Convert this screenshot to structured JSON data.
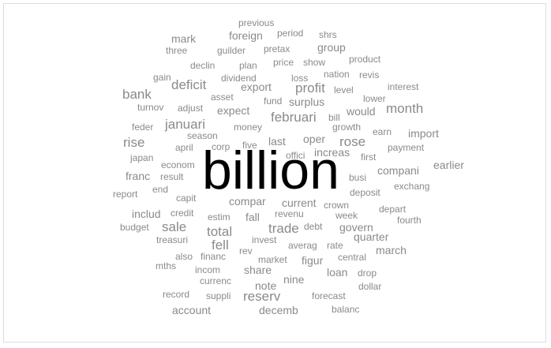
{
  "word_cloud": {
    "text_color": "#8a8a8a",
    "highlight_color": "#000000",
    "words": [
      {
        "text": "billion",
        "weight": 10
      },
      {
        "text": "previous",
        "weight": 2
      },
      {
        "text": "foreign",
        "weight": 3
      },
      {
        "text": "period",
        "weight": 2
      },
      {
        "text": "shrs",
        "weight": 2
      },
      {
        "text": "mark",
        "weight": 3
      },
      {
        "text": "three",
        "weight": 2
      },
      {
        "text": "guilder",
        "weight": 2
      },
      {
        "text": "pretax",
        "weight": 2
      },
      {
        "text": "group",
        "weight": 3
      },
      {
        "text": "declin",
        "weight": 2
      },
      {
        "text": "plan",
        "weight": 2
      },
      {
        "text": "price",
        "weight": 2
      },
      {
        "text": "show",
        "weight": 2
      },
      {
        "text": "product",
        "weight": 2
      },
      {
        "text": "gain",
        "weight": 2
      },
      {
        "text": "dividend",
        "weight": 2
      },
      {
        "text": "loss",
        "weight": 2
      },
      {
        "text": "nation",
        "weight": 2
      },
      {
        "text": "revis",
        "weight": 2
      },
      {
        "text": "deficit",
        "weight": 4
      },
      {
        "text": "export",
        "weight": 3
      },
      {
        "text": "profit",
        "weight": 4
      },
      {
        "text": "level",
        "weight": 2
      },
      {
        "text": "interest",
        "weight": 2
      },
      {
        "text": "bank",
        "weight": 4
      },
      {
        "text": "asset",
        "weight": 2
      },
      {
        "text": "fund",
        "weight": 2
      },
      {
        "text": "surplus",
        "weight": 3
      },
      {
        "text": "lower",
        "weight": 2
      },
      {
        "text": "turnov",
        "weight": 2
      },
      {
        "text": "adjust",
        "weight": 2
      },
      {
        "text": "expect",
        "weight": 3
      },
      {
        "text": "would",
        "weight": 3
      },
      {
        "text": "month",
        "weight": 4
      },
      {
        "text": "bill",
        "weight": 2
      },
      {
        "text": "feder",
        "weight": 2
      },
      {
        "text": "januari",
        "weight": 4
      },
      {
        "text": "money",
        "weight": 2
      },
      {
        "text": "februari",
        "weight": 4
      },
      {
        "text": "growth",
        "weight": 2
      },
      {
        "text": "earn",
        "weight": 2
      },
      {
        "text": "season",
        "weight": 2
      },
      {
        "text": "oper",
        "weight": 3
      },
      {
        "text": "import",
        "weight": 3
      },
      {
        "text": "rise",
        "weight": 4
      },
      {
        "text": "corp",
        "weight": 2
      },
      {
        "text": "five",
        "weight": 2
      },
      {
        "text": "last",
        "weight": 3
      },
      {
        "text": "rose",
        "weight": 4
      },
      {
        "text": "april",
        "weight": 2
      },
      {
        "text": "payment",
        "weight": 2
      },
      {
        "text": "increas",
        "weight": 3
      },
      {
        "text": "japan",
        "weight": 2
      },
      {
        "text": "offici",
        "weight": 2
      },
      {
        "text": "first",
        "weight": 2
      },
      {
        "text": "earlier",
        "weight": 3
      },
      {
        "text": "econom",
        "weight": 2
      },
      {
        "text": "compani",
        "weight": 3
      },
      {
        "text": "franc",
        "weight": 3
      },
      {
        "text": "result",
        "weight": 2
      },
      {
        "text": "busi",
        "weight": 2
      },
      {
        "text": "end",
        "weight": 2
      },
      {
        "text": "exchang",
        "weight": 2
      },
      {
        "text": "report",
        "weight": 2
      },
      {
        "text": "capit",
        "weight": 2
      },
      {
        "text": "deposit",
        "weight": 2
      },
      {
        "text": "compar",
        "weight": 3
      },
      {
        "text": "current",
        "weight": 3
      },
      {
        "text": "crown",
        "weight": 2
      },
      {
        "text": "depart",
        "weight": 2
      },
      {
        "text": "includ",
        "weight": 3
      },
      {
        "text": "credit",
        "weight": 2
      },
      {
        "text": "revenu",
        "weight": 2
      },
      {
        "text": "week",
        "weight": 2
      },
      {
        "text": "estim",
        "weight": 2
      },
      {
        "text": "fall",
        "weight": 3
      },
      {
        "text": "fourth",
        "weight": 2
      },
      {
        "text": "sale",
        "weight": 4
      },
      {
        "text": "budget",
        "weight": 2
      },
      {
        "text": "trade",
        "weight": 4
      },
      {
        "text": "debt",
        "weight": 2
      },
      {
        "text": "govern",
        "weight": 3
      },
      {
        "text": "total",
        "weight": 4
      },
      {
        "text": "quarter",
        "weight": 3
      },
      {
        "text": "treasuri",
        "weight": 2
      },
      {
        "text": "invest",
        "weight": 2
      },
      {
        "text": "fell",
        "weight": 4
      },
      {
        "text": "averag",
        "weight": 2
      },
      {
        "text": "rate",
        "weight": 2
      },
      {
        "text": "march",
        "weight": 3
      },
      {
        "text": "rev",
        "weight": 2
      },
      {
        "text": "also",
        "weight": 2
      },
      {
        "text": "financ",
        "weight": 2
      },
      {
        "text": "market",
        "weight": 2
      },
      {
        "text": "figur",
        "weight": 3
      },
      {
        "text": "central",
        "weight": 2
      },
      {
        "text": "mths",
        "weight": 2
      },
      {
        "text": "incom",
        "weight": 2
      },
      {
        "text": "share",
        "weight": 3
      },
      {
        "text": "loan",
        "weight": 3
      },
      {
        "text": "drop",
        "weight": 2
      },
      {
        "text": "currenc",
        "weight": 2
      },
      {
        "text": "nine",
        "weight": 3
      },
      {
        "text": "note",
        "weight": 3
      },
      {
        "text": "dollar",
        "weight": 2
      },
      {
        "text": "record",
        "weight": 2
      },
      {
        "text": "suppli",
        "weight": 2
      },
      {
        "text": "reserv",
        "weight": 4
      },
      {
        "text": "forecast",
        "weight": 2
      },
      {
        "text": "account",
        "weight": 3
      },
      {
        "text": "decemb",
        "weight": 3
      },
      {
        "text": "balanc",
        "weight": 2
      }
    ]
  }
}
